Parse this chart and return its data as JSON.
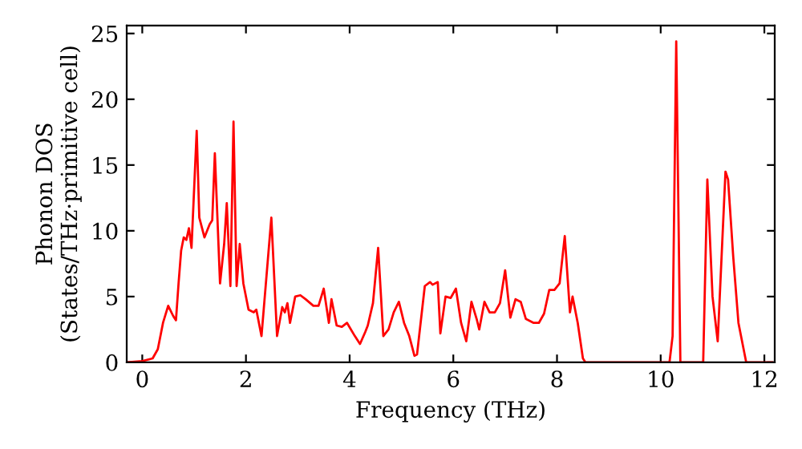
{
  "chart_data": {
    "type": "line",
    "xlabel": "Frequency (THz)",
    "ylabel": "Phonon DOS\n(States/THz·primitive cell)",
    "x": [
      -0.3,
      0,
      0.2,
      0.3,
      0.4,
      0.5,
      0.6,
      0.65,
      0.7,
      0.75,
      0.8,
      0.85,
      0.9,
      0.95,
      1.05,
      1.1,
      1.2,
      1.3,
      1.35,
      1.4,
      1.5,
      1.58,
      1.63,
      1.7,
      1.76,
      1.82,
      1.88,
      1.95,
      2.05,
      2.15,
      2.2,
      2.3,
      2.49,
      2.6,
      2.7,
      2.75,
      2.8,
      2.85,
      2.95,
      3.05,
      3.15,
      3.3,
      3.4,
      3.5,
      3.6,
      3.65,
      3.75,
      3.85,
      3.95,
      4.1,
      4.2,
      4.3,
      4.35,
      4.45,
      4.55,
      4.65,
      4.75,
      4.85,
      4.95,
      5.05,
      5.15,
      5.25,
      5.3,
      5.45,
      5.55,
      5.6,
      5.7,
      5.75,
      5.85,
      5.95,
      6.05,
      6.15,
      6.25,
      6.35,
      6.45,
      6.5,
      6.6,
      6.7,
      6.8,
      6.9,
      7.0,
      7.1,
      7.2,
      7.3,
      7.4,
      7.55,
      7.65,
      7.75,
      7.85,
      7.95,
      8.05,
      8.15,
      8.25,
      8.3,
      8.4,
      8.5,
      8.55,
      10.17,
      10.23,
      10.3,
      10.38,
      10.82,
      10.9,
      11.0,
      11.1,
      11.25,
      11.3,
      11.4,
      11.5,
      11.65,
      12.15
    ],
    "series": [
      {
        "color": "#ff0000",
        "values": [
          0,
          0.1,
          0.3,
          1,
          3,
          4.3,
          3.5,
          3.2,
          6,
          8.5,
          9.5,
          9.3,
          10.2,
          8.7,
          17.6,
          11,
          9.5,
          10.5,
          10.8,
          15.9,
          6,
          9,
          12.1,
          5.8,
          18.3,
          5.8,
          9,
          6,
          4,
          3.8,
          4,
          2,
          11,
          2,
          4.2,
          3.8,
          4.5,
          3,
          5,
          5.1,
          4.8,
          4.3,
          4.3,
          5.6,
          3,
          4.8,
          2.8,
          2.7,
          3,
          2,
          1.4,
          2.3,
          2.8,
          4.5,
          8.7,
          2,
          2.5,
          3.8,
          4.6,
          3,
          2,
          0.5,
          0.6,
          5.8,
          6.1,
          5.9,
          6.1,
          2.2,
          5,
          4.9,
          5.6,
          3,
          1.6,
          4.6,
          3.3,
          2.5,
          4.6,
          3.8,
          3.8,
          4.5,
          7,
          3.4,
          4.8,
          4.6,
          3.3,
          3,
          3,
          3.7,
          5.5,
          5.5,
          6,
          9.6,
          3.8,
          5,
          3,
          0.3,
          0,
          0,
          2,
          24.4,
          0,
          0,
          13.9,
          5,
          1.6,
          14.5,
          13.9,
          8,
          3,
          0,
          0
        ]
      }
    ],
    "xlim": [
      -0.3,
      12.2
    ],
    "ylim": [
      0,
      25.6
    ],
    "xticks": [
      0,
      2,
      4,
      6,
      8,
      10,
      12
    ],
    "yticks": [
      0,
      5,
      10,
      15,
      20,
      25
    ],
    "grid": false,
    "legend": false
  }
}
